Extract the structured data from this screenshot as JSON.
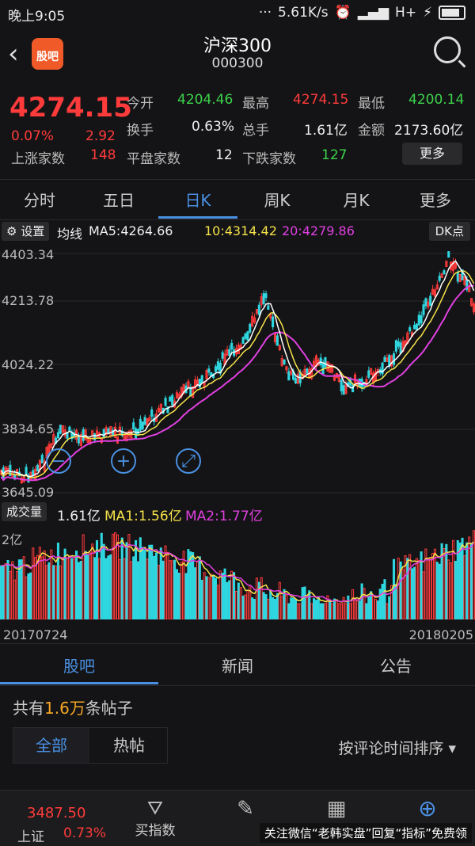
{
  "status_bar": {
    "time": "晚上9:05",
    "net_speed": "5.61K/s",
    "network": "H+"
  },
  "header": {
    "title": "沪深300",
    "code": "000300",
    "app_logo_text": "股吧"
  },
  "quote": {
    "price": "4274.15",
    "change_pct": "0.07%",
    "change": "2.92",
    "open_label": "今开",
    "open": "4204.46",
    "high_label": "最高",
    "high": "4274.15",
    "low_label": "最低",
    "low": "4200.14",
    "turnover_label": "换手",
    "turnover": "0.63%",
    "volume_label": "总手",
    "volume": "1.61亿",
    "amount_label": "金额",
    "amount": "2173.60亿",
    "up_label": "上涨家数",
    "up": "148",
    "flat_label": "平盘家数",
    "flat": "12",
    "down_label": "下跌家数",
    "down": "127",
    "more": "更多"
  },
  "period_tabs": [
    "分时",
    "五日",
    "日K",
    "周K",
    "月K",
    "更多"
  ],
  "active_period": "日K",
  "ma": {
    "settings": "设置",
    "label": "均线",
    "ma5": "MA5:4264.66",
    "ma10": "10:4314.42",
    "ma20": "20:4279.86",
    "dk": "DK点"
  },
  "y_axis": [
    "4403.34",
    "4213.78",
    "4024.22",
    "3834.65",
    "3645.09"
  ],
  "volume_panel": {
    "label": "成交量",
    "value": "1.61亿",
    "ma1": "MA1:1.56亿",
    "ma2": "MA2:1.77亿",
    "scale": "2亿"
  },
  "dates": {
    "start": "20170724",
    "end": "20180205"
  },
  "section_tabs": [
    "股吧",
    "新闻",
    "公告"
  ],
  "posts": {
    "prefix": "共有",
    "count": "1.6万",
    "suffix": "条帖子"
  },
  "filters": {
    "all": "全部",
    "hot": "热帖"
  },
  "sort": "按评论时间排序",
  "bottom_bar": {
    "index_price": "3487.50",
    "index_name": "上证",
    "index_pct": "0.73%",
    "buy_index": "买指数"
  },
  "watermark": "关注微信“老韩实盘”回复“指标”免费领",
  "colors": {
    "up": "#ff3b3b",
    "down": "#3cd24a",
    "accent": "#4a90e2",
    "ma5": "#ffffff",
    "ma10": "#f5e24a",
    "ma20": "#e040e0",
    "vol_down": "#2fd6e0"
  }
}
